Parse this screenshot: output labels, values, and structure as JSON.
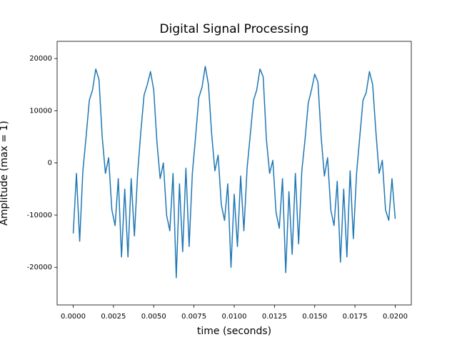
{
  "chart_data": {
    "type": "line",
    "title": "Digital Signal Processing",
    "xlabel": "time (seconds)",
    "ylabel": "Amplitude (max = 1)",
    "color": "#1f77b4",
    "x": [
      0,
      0.0002,
      0.0004,
      0.0006,
      0.0008,
      0.001,
      0.0012,
      0.0014,
      0.0016,
      0.0018,
      0.002,
      0.0022,
      0.0024,
      0.0026,
      0.0028,
      0.003,
      0.0032,
      0.0034,
      0.0036,
      0.0038,
      0.004,
      0.0042,
      0.0044,
      0.0046,
      0.0048,
      0.005,
      0.0052,
      0.0054,
      0.0056,
      0.0058,
      0.006,
      0.0062,
      0.0064,
      0.0066,
      0.0068,
      0.007,
      0.0072,
      0.0074,
      0.0076,
      0.0078,
      0.008,
      0.0082,
      0.0084,
      0.0086,
      0.0088,
      0.009,
      0.0092,
      0.0094,
      0.0096,
      0.0098,
      0.01,
      0.0102,
      0.0104,
      0.0106,
      0.0108,
      0.011,
      0.0112,
      0.0114,
      0.0116,
      0.0118,
      0.012,
      0.0122,
      0.0124,
      0.0126,
      0.0128,
      0.013,
      0.0132,
      0.0134,
      0.0136,
      0.0138,
      0.014,
      0.0142,
      0.0144,
      0.0146,
      0.0148,
      0.015,
      0.0152,
      0.0154,
      0.0156,
      0.0158,
      0.016,
      0.0162,
      0.0164,
      0.0166,
      0.0168,
      0.017,
      0.0172,
      0.0174,
      0.0176,
      0.0178,
      0.018,
      0.0182,
      0.0184,
      0.0186,
      0.0188,
      0.019,
      0.0192,
      0.0194,
      0.0196,
      0.0198,
      0.02
    ],
    "values": [
      -13500,
      -2000,
      -15000,
      -1500,
      5000,
      12000,
      14000,
      18000,
      16000,
      5000,
      -2000,
      1000,
      -9000,
      -12000,
      -3000,
      -18000,
      -5000,
      -18000,
      -3000,
      -14000,
      -2000,
      6000,
      13000,
      15000,
      17500,
      14000,
      4000,
      -3000,
      0,
      -10000,
      -13000,
      -2000,
      -22000,
      -4000,
      -17000,
      -1000,
      -16000,
      -2000,
      5000,
      12500,
      14500,
      18500,
      15000,
      5500,
      -1500,
      1500,
      -8000,
      -11000,
      -4000,
      -20000,
      -6000,
      -16000,
      -2500,
      -13000,
      -1000,
      5500,
      12000,
      14000,
      18000,
      16500,
      4500,
      -2000,
      500,
      -9500,
      -12500,
      -3000,
      -21000,
      -5500,
      -17500,
      -2000,
      -15500,
      -1500,
      4500,
      11500,
      14000,
      17000,
      15500,
      5000,
      -2500,
      1000,
      -9000,
      -12000,
      -3500,
      -19000,
      -5000,
      -18000,
      -1500,
      -14500,
      -2000,
      5000,
      12000,
      13500,
      17500,
      15000,
      6000,
      -2000,
      500,
      -9000,
      -11000,
      -3000,
      -10700
    ],
    "xlim": [
      -0.001,
      0.021
    ],
    "ylim": [
      -27200,
      23300
    ],
    "xticks": [
      {
        "value": 0,
        "label": "0.0000"
      },
      {
        "value": 0.0025,
        "label": "0.0025"
      },
      {
        "value": 0.005,
        "label": "0.0050"
      },
      {
        "value": 0.0075,
        "label": "0.0075"
      },
      {
        "value": 0.01,
        "label": "0.0100"
      },
      {
        "value": 0.0125,
        "label": "0.0125"
      },
      {
        "value": 0.015,
        "label": "0.0150"
      },
      {
        "value": 0.0175,
        "label": "0.0175"
      },
      {
        "value": 0.02,
        "label": "0.0200"
      }
    ],
    "yticks": [
      -20000,
      -10000,
      0,
      10000,
      20000
    ]
  }
}
